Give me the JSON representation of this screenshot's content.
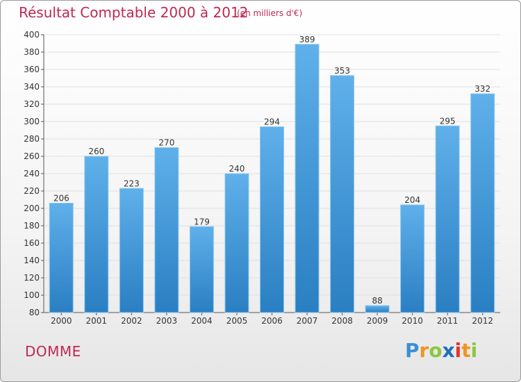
{
  "header": {
    "title": "Résultat Comptable 2000 à 2012",
    "subtitle": "(en milliers d'€)"
  },
  "footer": {
    "commune": "DOMME",
    "brand": "Proxiti"
  },
  "colors": {
    "title": "#c0284f",
    "bar_top": "#5fb0ea",
    "bar_bottom": "#2a7fc2",
    "grid": "#e0e0e0"
  },
  "chart_data": {
    "type": "bar",
    "title": "Résultat Comptable 2000 à 2012",
    "subtitle": "(en milliers d'€)",
    "xlabel": "",
    "ylabel": "",
    "categories": [
      "2000",
      "2001",
      "2002",
      "2003",
      "2004",
      "2005",
      "2006",
      "2007",
      "2008",
      "2009",
      "2010",
      "2011",
      "2012"
    ],
    "values": [
      206,
      260,
      223,
      270,
      179,
      240,
      294,
      389,
      353,
      88,
      204,
      295,
      332
    ],
    "ylim": [
      80,
      400
    ],
    "yticks": [
      80,
      100,
      120,
      140,
      160,
      180,
      200,
      220,
      240,
      260,
      280,
      300,
      320,
      340,
      360,
      380,
      400
    ],
    "grid": true,
    "data_labels": true
  }
}
